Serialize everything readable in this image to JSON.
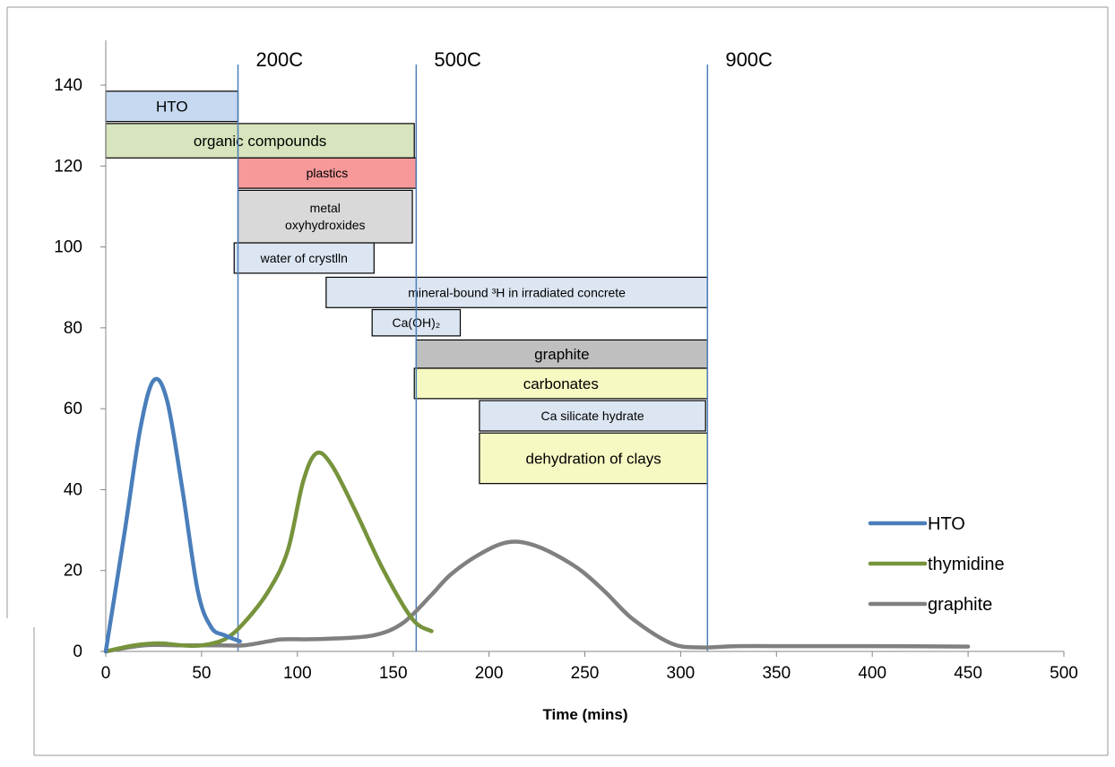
{
  "chart_data": {
    "type": "line",
    "title": "",
    "xlabel": "Time (mins)",
    "ylabel": "",
    "xlim": [
      0,
      500
    ],
    "ylim": [
      0,
      140
    ],
    "x_ticks": [
      0,
      50,
      100,
      150,
      200,
      250,
      300,
      350,
      400,
      450,
      500
    ],
    "y_ticks": [
      0,
      20,
      40,
      60,
      80,
      100,
      120,
      140
    ],
    "grid": false,
    "legend_position": "bottom-right",
    "series": [
      {
        "name": "HTO",
        "color": "#4a7ebb",
        "points": [
          [
            0,
            0
          ],
          [
            10,
            30
          ],
          [
            18,
            55
          ],
          [
            25,
            67
          ],
          [
            32,
            62
          ],
          [
            40,
            40
          ],
          [
            48,
            15
          ],
          [
            55,
            6
          ],
          [
            62,
            4
          ],
          [
            70,
            2.5
          ]
        ]
      },
      {
        "name": "thymidine",
        "color": "#77933c",
        "points": [
          [
            0,
            0
          ],
          [
            15,
            1.5
          ],
          [
            28,
            2
          ],
          [
            40,
            1.5
          ],
          [
            50,
            1.5
          ],
          [
            62,
            3
          ],
          [
            72,
            7
          ],
          [
            85,
            15
          ],
          [
            95,
            25
          ],
          [
            103,
            42
          ],
          [
            110,
            49
          ],
          [
            118,
            46
          ],
          [
            130,
            35
          ],
          [
            145,
            20
          ],
          [
            160,
            8
          ],
          [
            170,
            5
          ]
        ]
      },
      {
        "name": "graphite",
        "color": "#808080",
        "points": [
          [
            0,
            0
          ],
          [
            20,
            1.5
          ],
          [
            40,
            1.5
          ],
          [
            60,
            1.5
          ],
          [
            72,
            1.5
          ],
          [
            85,
            2.5
          ],
          [
            92,
            3
          ],
          [
            105,
            3
          ],
          [
            120,
            3.2
          ],
          [
            140,
            4
          ],
          [
            155,
            7
          ],
          [
            170,
            14
          ],
          [
            180,
            19
          ],
          [
            195,
            24
          ],
          [
            210,
            27
          ],
          [
            225,
            26
          ],
          [
            245,
            21
          ],
          [
            260,
            15
          ],
          [
            275,
            8
          ],
          [
            295,
            2
          ],
          [
            310,
            1
          ],
          [
            330,
            1.3
          ],
          [
            360,
            1.3
          ],
          [
            400,
            1.3
          ],
          [
            450,
            1.2
          ]
        ]
      }
    ],
    "vertical_lines": [
      {
        "x": 69,
        "label": "200C"
      },
      {
        "x": 162,
        "label": "500C"
      },
      {
        "x": 314,
        "label": "900C"
      }
    ],
    "annotation_boxes": [
      {
        "id": "hto",
        "lines": [
          "HTO"
        ],
        "x0": 0,
        "x1": 69,
        "y0": 131,
        "y1": 138.5,
        "fill": "#c6d9f1"
      },
      {
        "id": "organic",
        "lines": [
          "organic compounds"
        ],
        "x0": 0,
        "x1": 161,
        "y0": 122,
        "y1": 130.5,
        "fill": "#d7e4bd"
      },
      {
        "id": "plastics",
        "lines": [
          "plastics"
        ],
        "x0": 69,
        "x1": 162,
        "y0": 114.5,
        "y1": 122,
        "fill": "#f79999"
      },
      {
        "id": "metal",
        "lines": [
          "metal",
          "oxyhydroxides"
        ],
        "x0": 69,
        "x1": 160,
        "y0": 101,
        "y1": 114,
        "fill": "#d9d9d9"
      },
      {
        "id": "water",
        "lines": [
          "water of crystlln"
        ],
        "x0": 67,
        "x1": 140,
        "y0": 93.5,
        "y1": 101,
        "fill": "#dce6f2"
      },
      {
        "id": "mineral",
        "lines": [
          "mineral-bound ³H in irradiated concrete"
        ],
        "x0": 115,
        "x1": 314,
        "y0": 85,
        "y1": 92.5,
        "fill": "#dce6f2"
      },
      {
        "id": "caoh",
        "lines": [
          "Ca(OH)₂"
        ],
        "x0": 139,
        "x1": 185,
        "y0": 78,
        "y1": 84.5,
        "fill": "#dce6f2"
      },
      {
        "id": "graphite-box",
        "lines": [
          "graphite"
        ],
        "x0": 162,
        "x1": 314,
        "y0": 70,
        "y1": 77,
        "fill": "#bfbfbf"
      },
      {
        "id": "carbonates",
        "lines": [
          "carbonates"
        ],
        "x0": 161,
        "x1": 314,
        "y0": 62.5,
        "y1": 70,
        "fill": "#f7f9c3"
      },
      {
        "id": "casilicate",
        "lines": [
          "Ca silicate hydrate"
        ],
        "x0": 195,
        "x1": 313,
        "y0": 54.5,
        "y1": 62,
        "fill": "#dce6f2"
      },
      {
        "id": "clays",
        "lines": [
          "dehydration of clays"
        ],
        "x0": 195,
        "x1": 314,
        "y0": 41.5,
        "y1": 54,
        "fill": "#f7f9c3"
      }
    ]
  }
}
